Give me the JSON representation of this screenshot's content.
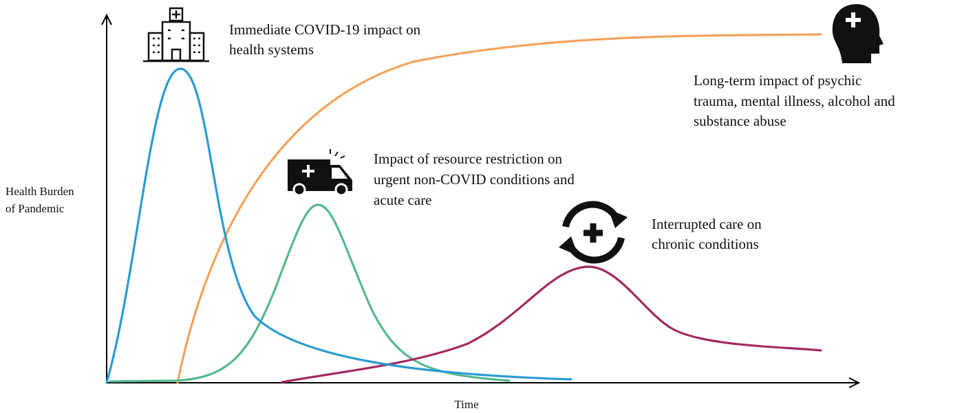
{
  "axes": {
    "y_label": [
      "Health Burden",
      "of Pandemic"
    ],
    "x_label": "Time"
  },
  "annotations": [
    {
      "lines": [
        "Immediate COVID-19 impact on",
        "health systems"
      ]
    },
    {
      "lines": [
        "Impact of resource restriction on",
        "urgent non-COVID conditions and",
        "acute care"
      ]
    },
    {
      "lines": [
        "Interrupted care on",
        "chronic conditions"
      ]
    },
    {
      "lines": [
        "Long-term impact of psychic",
        "trauma, mental illness, alcohol and",
        "substance abuse"
      ]
    }
  ]
}
